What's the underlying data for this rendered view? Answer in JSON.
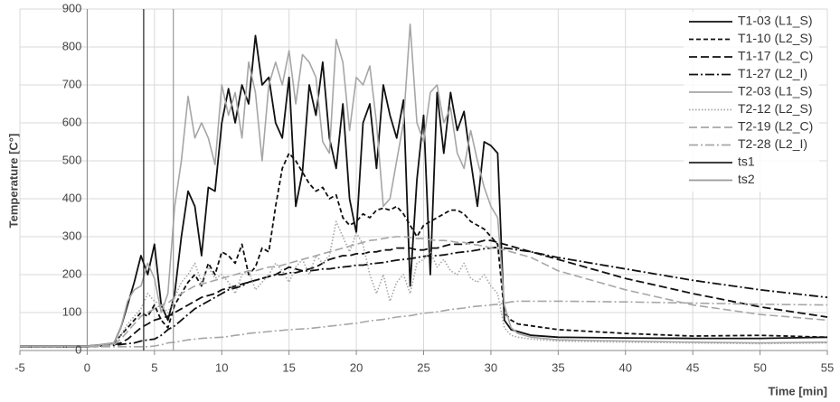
{
  "chart_data": {
    "type": "line",
    "x_label": "Time [min]",
    "y_label": "Temperature [C°]",
    "xlim": [
      -5,
      55
    ],
    "xticks": [
      -5,
      0,
      5,
      10,
      15,
      20,
      25,
      30,
      35,
      40,
      45,
      50,
      55
    ],
    "ylim": [
      0,
      900
    ],
    "yticks": [
      0,
      100,
      200,
      300,
      400,
      500,
      600,
      700,
      800,
      900
    ],
    "grid": true,
    "legend": "top-right",
    "x": [
      -5,
      0,
      1,
      2,
      2.5,
      3,
      3.5,
      4,
      4.5,
      5,
      5.5,
      6,
      6.5,
      7,
      7.5,
      8,
      8.5,
      9,
      9.5,
      10,
      10.5,
      11,
      11.5,
      12,
      12.5,
      13,
      13.5,
      14,
      14.5,
      15,
      15.5,
      16,
      16.5,
      17,
      17.5,
      18,
      18.5,
      19,
      19.5,
      20,
      20.5,
      21,
      21.5,
      22,
      22.5,
      23,
      23.5,
      24,
      24.5,
      25,
      25.5,
      26,
      26.5,
      27,
      27.5,
      28,
      28.5,
      29,
      29.5,
      30,
      30.5,
      31,
      31.5,
      32,
      33,
      35,
      40,
      45,
      50,
      55
    ],
    "series": [
      {
        "name": "T1-03 (L1_S)",
        "color": "#111111",
        "dash": "solid",
        "values": [
          12,
          12,
          15,
          20,
          60,
          120,
          180,
          250,
          200,
          280,
          120,
          80,
          150,
          300,
          420,
          380,
          250,
          430,
          420,
          600,
          690,
          600,
          700,
          650,
          830,
          700,
          720,
          600,
          560,
          720,
          380,
          470,
          700,
          620,
          760,
          560,
          480,
          650,
          400,
          310,
          600,
          650,
          480,
          700,
          620,
          560,
          660,
          170,
          450,
          620,
          200,
          680,
          520,
          680,
          580,
          630,
          500,
          380,
          550,
          540,
          520,
          80,
          55,
          50,
          40,
          35,
          33,
          32,
          32,
          35
        ]
      },
      {
        "name": "T1-10 (L2_S)",
        "color": "#111111",
        "dash": "dashed",
        "values": [
          10,
          10,
          12,
          20,
          40,
          60,
          80,
          100,
          90,
          120,
          80,
          60,
          120,
          150,
          180,
          200,
          170,
          230,
          200,
          260,
          250,
          230,
          280,
          200,
          220,
          270,
          260,
          380,
          480,
          520,
          500,
          470,
          440,
          420,
          430,
          400,
          410,
          350,
          330,
          340,
          360,
          350,
          370,
          375,
          370,
          380,
          360,
          330,
          300,
          330,
          340,
          350,
          360,
          370,
          370,
          360,
          340,
          330,
          320,
          300,
          280,
          100,
          80,
          70,
          65,
          55,
          45,
          38,
          40,
          35
        ]
      },
      {
        "name": "T1-17 (L2_C)",
        "color": "#111111",
        "dash": "longdash",
        "values": [
          10,
          10,
          12,
          15,
          20,
          30,
          45,
          60,
          70,
          80,
          85,
          90,
          100,
          110,
          120,
          130,
          140,
          145,
          150,
          160,
          165,
          170,
          175,
          180,
          185,
          190,
          195,
          200,
          210,
          220,
          215,
          210,
          215,
          220,
          230,
          240,
          245,
          250,
          250,
          255,
          255,
          260,
          260,
          265,
          265,
          270,
          270,
          270,
          265,
          265,
          270,
          270,
          275,
          280,
          280,
          280,
          285,
          285,
          290,
          290,
          285,
          280,
          275,
          270,
          260,
          240,
          190,
          150,
          115,
          88
        ]
      },
      {
        "name": "T1-27 (L2_I)",
        "color": "#111111",
        "dash": "dashdot",
        "values": [
          10,
          10,
          12,
          14,
          16,
          18,
          20,
          25,
          28,
          30,
          40,
          55,
          65,
          80,
          95,
          110,
          120,
          130,
          140,
          150,
          160,
          165,
          170,
          180,
          185,
          190,
          195,
          200,
          200,
          205,
          205,
          210,
          210,
          212,
          215,
          215,
          218,
          220,
          222,
          225,
          225,
          228,
          230,
          232,
          235,
          238,
          240,
          242,
          245,
          248,
          250,
          250,
          252,
          255,
          258,
          260,
          262,
          265,
          268,
          270,
          272,
          270,
          268,
          265,
          260,
          245,
          215,
          185,
          160,
          140
        ]
      },
      {
        "name": "T2-03 (L1_S)",
        "color": "#a6a6a6",
        "dash": "solid",
        "values": [
          12,
          12,
          15,
          20,
          60,
          130,
          160,
          170,
          230,
          190,
          100,
          150,
          380,
          500,
          670,
          560,
          600,
          560,
          490,
          700,
          620,
          680,
          560,
          760,
          680,
          500,
          700,
          760,
          700,
          790,
          650,
          780,
          760,
          720,
          550,
          520,
          820,
          760,
          580,
          720,
          700,
          750,
          600,
          380,
          400,
          500,
          600,
          860,
          600,
          550,
          680,
          700,
          600,
          640,
          520,
          480,
          580,
          500,
          430,
          380,
          350,
          120,
          60,
          45,
          35,
          28,
          25,
          22,
          20,
          22
        ]
      },
      {
        "name": "T2-12 (L2_S)",
        "color": "#a6a6a6",
        "dash": "dotted",
        "values": [
          10,
          10,
          12,
          15,
          40,
          70,
          90,
          110,
          150,
          130,
          120,
          100,
          140,
          180,
          200,
          230,
          180,
          220,
          190,
          200,
          180,
          150,
          200,
          210,
          160,
          180,
          200,
          230,
          210,
          180,
          220,
          240,
          200,
          250,
          230,
          250,
          340,
          300,
          260,
          310,
          280,
          200,
          150,
          200,
          130,
          180,
          200,
          150,
          230,
          240,
          260,
          220,
          240,
          210,
          200,
          230,
          190,
          180,
          200,
          170,
          150,
          60,
          40,
          35,
          30,
          25,
          22,
          20,
          18,
          20
        ]
      },
      {
        "name": "T2-19 (L2_C)",
        "color": "#a6a6a6",
        "dash": "longdash",
        "values": [
          10,
          10,
          12,
          15,
          30,
          50,
          70,
          90,
          100,
          110,
          120,
          125,
          140,
          150,
          160,
          170,
          175,
          180,
          185,
          190,
          195,
          200,
          205,
          210,
          210,
          215,
          220,
          220,
          225,
          230,
          235,
          240,
          245,
          250,
          255,
          260,
          265,
          270,
          275,
          280,
          285,
          290,
          292,
          295,
          298,
          300,
          300,
          298,
          295,
          295,
          292,
          290,
          290,
          288,
          285,
          285,
          280,
          278,
          275,
          270,
          268,
          265,
          260,
          255,
          245,
          210,
          160,
          120,
          95,
          80
        ]
      },
      {
        "name": "T2-28 (L2_I)",
        "color": "#a6a6a6",
        "dash": "dashdot",
        "values": [
          10,
          10,
          10,
          10,
          10,
          10,
          10,
          10,
          10,
          12,
          15,
          20,
          22,
          25,
          28,
          30,
          32,
          33,
          34,
          35,
          37,
          40,
          42,
          45,
          47,
          48,
          50,
          52,
          53,
          55,
          56,
          57,
          58,
          60,
          62,
          64,
          66,
          68,
          70,
          72,
          75,
          78,
          80,
          82,
          85,
          88,
          90,
          92,
          95,
          98,
          100,
          102,
          105,
          108,
          110,
          112,
          115,
          117,
          118,
          120,
          122,
          125,
          128,
          130,
          130,
          130,
          128,
          125,
          122,
          120
        ]
      },
      {
        "name": "ts1",
        "color": "#222222",
        "dash": "solid",
        "x": [
          4.2,
          4.2
        ],
        "values": [
          0,
          900
        ]
      },
      {
        "name": "ts2",
        "color": "#999999",
        "dash": "solid",
        "x": [
          6.4,
          6.4
        ],
        "values": [
          0,
          900
        ]
      }
    ]
  }
}
